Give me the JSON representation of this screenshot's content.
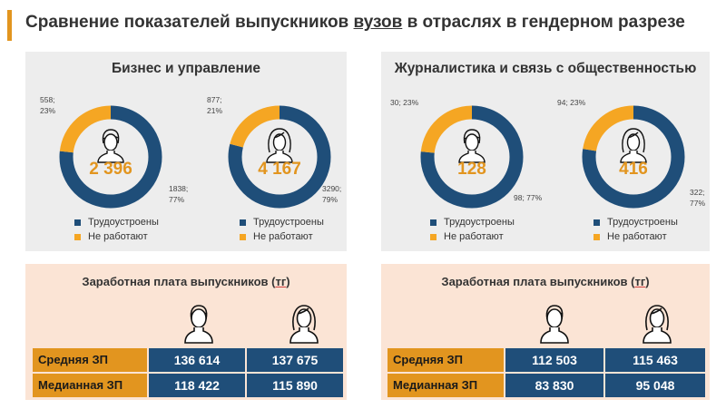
{
  "header": {
    "title_part1": "Сравнение показателей выпускников ",
    "title_underlined": "вузов",
    "title_part2": " в отраслях в гендерном разрезе"
  },
  "colors": {
    "employed": "#1f4e79",
    "not_working": "#f5a623",
    "accent": "#e2951f"
  },
  "legend": {
    "employed": "Трудоустроены",
    "not_working": "Не работают"
  },
  "chart_data": [
    {
      "type": "pie",
      "panel": "Бизнес и управление",
      "gender": "male",
      "total": "2 396",
      "slices": [
        {
          "name": "Трудоустроены",
          "value": 1838,
          "label": "1838;\n77%"
        },
        {
          "name": "Не работают",
          "value": 558,
          "label": "558;\n23%"
        }
      ]
    },
    {
      "type": "pie",
      "panel": "Бизнес и управление",
      "gender": "female",
      "total": "4 167",
      "slices": [
        {
          "name": "Трудоустроены",
          "value": 3290,
          "label": "3290;\n79%"
        },
        {
          "name": "Не работают",
          "value": 877,
          "label": "877;\n21%"
        }
      ]
    },
    {
      "type": "pie",
      "panel": "Журналистика и связь с общественностью",
      "gender": "male",
      "total": "128",
      "slices": [
        {
          "name": "Трудоустроены",
          "value": 98,
          "label": "98; 77%"
        },
        {
          "name": "Не работают",
          "value": 30,
          "label": "30; 23%"
        }
      ]
    },
    {
      "type": "pie",
      "panel": "Журналистика и связь с общественностью",
      "gender": "female",
      "total": "416",
      "slices": [
        {
          "name": "Трудоустроены",
          "value": 322,
          "label": "322;\n77%"
        },
        {
          "name": "Не работают",
          "value": 94,
          "label": "94; 23%"
        }
      ]
    },
    {
      "type": "table",
      "panel": "business",
      "columns": [
        "male",
        "female"
      ],
      "rows": [
        {
          "label": "Средняя ЗП",
          "values": [
            "136 614",
            "137 675"
          ]
        },
        {
          "label": "Медианная ЗП",
          "values": [
            "118 422",
            "115 890"
          ]
        }
      ]
    },
    {
      "type": "table",
      "panel": "journalism",
      "columns": [
        "male",
        "female"
      ],
      "rows": [
        {
          "label": "Средняя ЗП",
          "values": [
            "112 503",
            "115 463"
          ]
        },
        {
          "label": "Медианная ЗП",
          "values": [
            "83 830",
            "95 048"
          ]
        }
      ]
    }
  ],
  "panels": {
    "business_title": "Бизнес и управление",
    "journalism_title": "Журналистика и связь с общественностью",
    "salary_title_part1": "Заработная плата выпускников (",
    "salary_title_unit": "тг",
    "salary_title_part2": ")"
  },
  "icons": {
    "male": "male-person-icon",
    "female": "female-person-icon"
  }
}
